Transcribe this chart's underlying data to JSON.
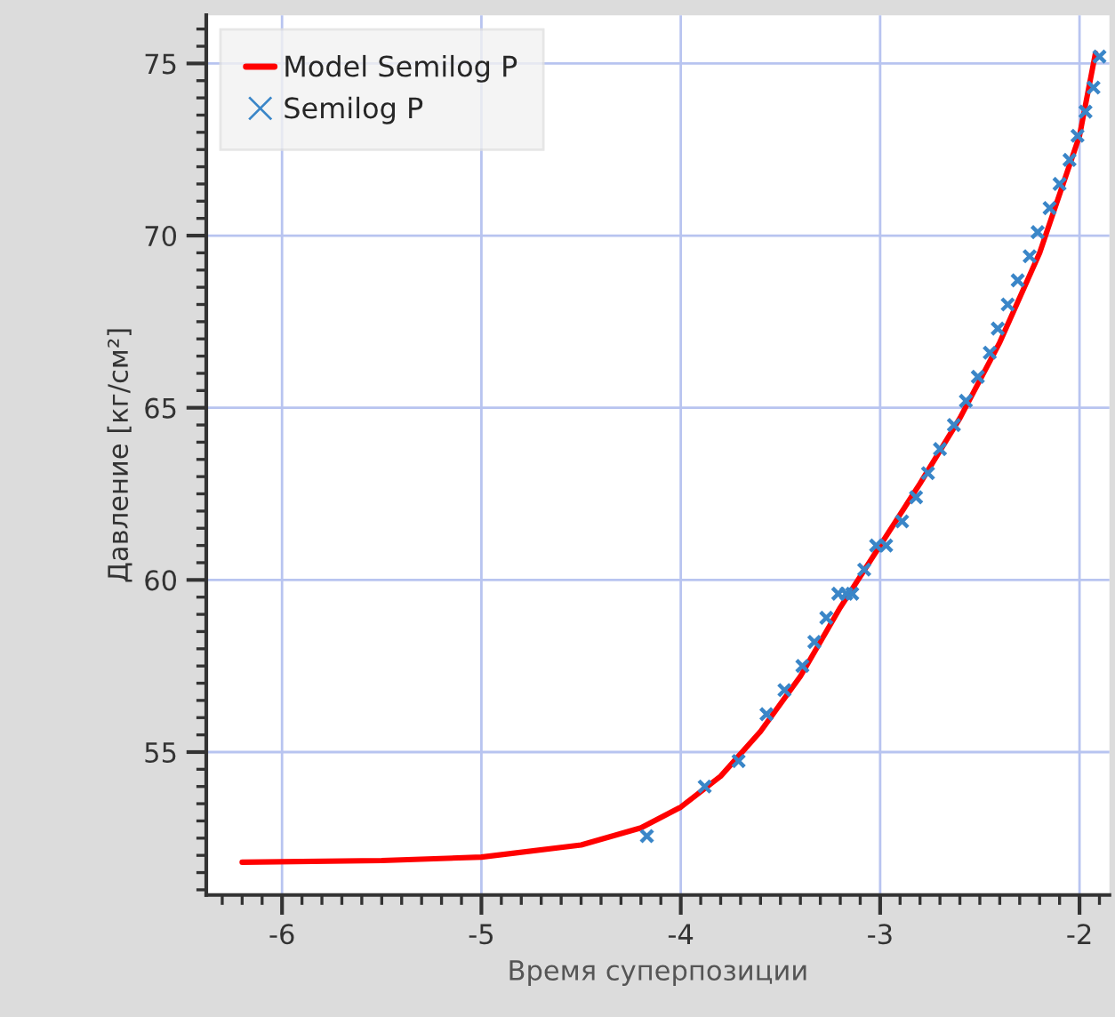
{
  "chart_data": {
    "type": "line",
    "xlabel": "Время суперпозиции",
    "ylabel": "Давление [кг/см²]",
    "xlim": [
      -6.38,
      -1.85
    ],
    "ylim": [
      50.85,
      76.4
    ],
    "xticks": [
      -6,
      -5,
      -4,
      -3,
      -2
    ],
    "yticks": [
      55,
      60,
      65,
      70,
      75
    ],
    "grid": true,
    "legend": "top left",
    "series": [
      {
        "name": "Model Semilog P",
        "color": "#ff0000",
        "line_style": "solid",
        "marker": "none",
        "x": [
          -6.2,
          -5.5,
          -5.0,
          -4.5,
          -4.2,
          -4.0,
          -3.8,
          -3.6,
          -3.4,
          -3.2,
          -3.0,
          -2.8,
          -2.6,
          -2.4,
          -2.2,
          -2.0,
          -1.92
        ],
        "values": [
          51.8,
          51.85,
          51.95,
          52.3,
          52.8,
          53.4,
          54.3,
          55.6,
          57.2,
          59.2,
          61.0,
          62.8,
          64.7,
          66.9,
          69.5,
          72.9,
          75.3
        ]
      },
      {
        "name": "Semilog P",
        "type": "scatter",
        "color": "#3a86c8",
        "marker": "cross",
        "x": [
          -4.17,
          -3.88,
          -3.71,
          -3.57,
          -3.48,
          -3.39,
          -3.33,
          -3.27,
          -3.21,
          -3.17,
          -3.14,
          -3.08,
          -3.02,
          -2.97,
          -2.89,
          -2.82,
          -2.76,
          -2.7,
          -2.63,
          -2.57,
          -2.51,
          -2.45,
          -2.41,
          -2.36,
          -2.31,
          -2.25,
          -2.21,
          -2.15,
          -2.1,
          -2.05,
          -2.01,
          -1.97,
          -1.93,
          -1.9
        ],
        "values": [
          52.56,
          54.0,
          54.74,
          56.1,
          56.8,
          57.5,
          58.2,
          58.9,
          59.6,
          59.6,
          59.6,
          60.3,
          61.0,
          61.0,
          61.7,
          62.4,
          63.1,
          63.8,
          64.5,
          65.2,
          65.9,
          66.6,
          67.3,
          68.0,
          68.7,
          69.4,
          70.1,
          70.8,
          71.5,
          72.2,
          72.9,
          73.6,
          74.3,
          75.2
        ]
      }
    ]
  }
}
